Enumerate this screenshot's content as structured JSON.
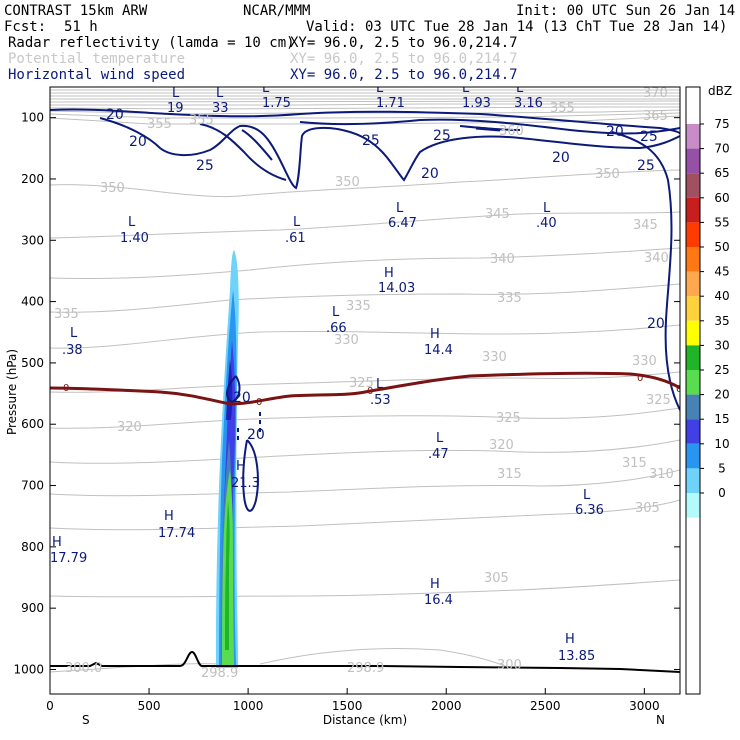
{
  "header": {
    "model": "CONTRAST 15km ARW",
    "org": "NCAR/MMM",
    "init": "Init: 00 UTC Sun 26 Jan 14",
    "fcst_label": "Fcst:",
    "fcst_value": "51 h",
    "valid": "Valid: 03 UTC Tue 28 Jan 14 (13 ChT Tue 28 Jan 14)"
  },
  "fields": [
    {
      "name": "Radar reflectivity (lamda = 10 cm)",
      "xy": "XY=  96.0,  2.5 to  96.0,214.7",
      "color": "#000000"
    },
    {
      "name": "Potential temperature",
      "xy": "XY=  96.0,  2.5 to  96.0,214.7",
      "color": "#c8c8c8"
    },
    {
      "name": "Horizontal wind speed",
      "xy": "XY=  96.0,  2.5 to  96.0,214.7",
      "color": "#0c1a7a"
    }
  ],
  "chart_data": {
    "type": "cross-section",
    "xlabel": "Distance (km)",
    "ylabel": "Pressure (hPa)",
    "xlim": [
      0,
      3180
    ],
    "ylim": [
      1040,
      50
    ],
    "x_ticks": [
      "0",
      "500",
      "1000",
      "1500",
      "2000",
      "2500",
      "3000"
    ],
    "x_tick_values": [
      0,
      500,
      1000,
      1500,
      2000,
      2500,
      3000
    ],
    "y_ticks": [
      "100",
      "200",
      "300",
      "400",
      "500",
      "600",
      "700",
      "800",
      "900",
      "1000"
    ],
    "y_tick_values": [
      100,
      200,
      300,
      400,
      500,
      600,
      700,
      800,
      900,
      1000
    ],
    "endpoints": {
      "left": "S",
      "right": "N"
    },
    "colorbar": {
      "unit": "dBZ",
      "levels": [
        "75",
        "70",
        "65",
        "60",
        "55",
        "50",
        "45",
        "40",
        "35",
        "30",
        "25",
        "20",
        "15",
        "10",
        "5",
        "0"
      ],
      "colors": [
        "#c88cc8",
        "#9650a8",
        "#a05060",
        "#c81e1e",
        "#ff3c00",
        "#ff7814",
        "#ffa850",
        "#ffd23c",
        "#ffff00",
        "#20b428",
        "#5adc50",
        "#4682b4",
        "#4040e6",
        "#2896f0",
        "#6ed2fa",
        "#b4fafa"
      ]
    },
    "wind_contours_labels": [
      "20",
      "20",
      "25",
      "25",
      "20",
      "25",
      "20",
      "25",
      "20",
      "25",
      "20",
      "20",
      "20"
    ],
    "theta_labels": [
      "350",
      "350",
      "345",
      "345",
      "340",
      "340",
      "335",
      "335",
      "335",
      "330",
      "330",
      "330",
      "325",
      "325",
      "325",
      "320",
      "320",
      "315",
      "315",
      "310",
      "305",
      "305",
      "300.0",
      "298.9",
      "298.9",
      "300",
      "355",
      "355",
      "360",
      "370",
      "365",
      "355",
      "350"
    ],
    "zero_contour_labels": [
      "0",
      "0",
      "0",
      "0",
      "0"
    ],
    "extrema": [
      {
        "type": "L",
        "value": "19"
      },
      {
        "type": "L",
        "value": "33"
      },
      {
        "type": "L",
        "value": "1.75"
      },
      {
        "type": "L",
        "value": "1.71"
      },
      {
        "type": "L",
        "value": "1.93"
      },
      {
        "type": "L",
        "value": "3.16"
      },
      {
        "type": "L",
        "value": "1.40"
      },
      {
        "type": "L",
        "value": ".61"
      },
      {
        "type": "L",
        "value": "6.47"
      },
      {
        "type": "L",
        "value": ".40"
      },
      {
        "type": "H",
        "value": "14.03"
      },
      {
        "type": "L",
        "value": ".66"
      },
      {
        "type": "L",
        "value": ".38"
      },
      {
        "type": "H",
        "value": "14.4"
      },
      {
        "type": "L",
        "value": ".53"
      },
      {
        "type": "L",
        "value": ".47"
      },
      {
        "type": "H",
        "value": "21.3"
      },
      {
        "type": "L",
        "value": "6.36"
      },
      {
        "type": "H",
        "value": "17.74"
      },
      {
        "type": "H",
        "value": "17.79"
      },
      {
        "type": "H",
        "value": "16.4"
      },
      {
        "type": "H",
        "value": "13.85"
      }
    ]
  }
}
